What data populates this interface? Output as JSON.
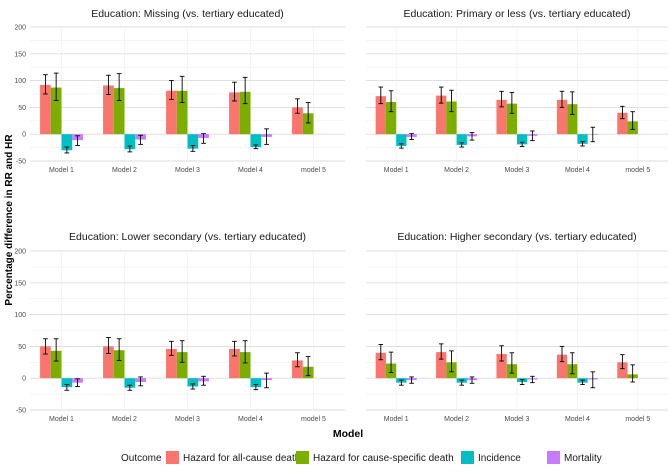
{
  "chart_data": {
    "type": "bar",
    "xlabel": "Model",
    "ylabel": "Percentage difference in RR and HR",
    "ylim": [
      -50,
      200
    ],
    "yticks": [
      -50,
      0,
      50,
      100,
      150,
      200
    ],
    "categories": [
      "Model 1",
      "Model 2",
      "Model 3",
      "Model 4",
      "model 5"
    ],
    "legend": {
      "title": "Outcome",
      "position": "bottom",
      "items": [
        {
          "name": "Hazard for all-cause death",
          "color": "#F8766D"
        },
        {
          "name": "Hazard for cause-specific death",
          "color": "#7CAE00"
        },
        {
          "name": "Incidence",
          "color": "#00BFC4"
        },
        {
          "name": "Mortality",
          "color": "#C77CFF"
        }
      ]
    },
    "panels": [
      {
        "title": "Education: Missing (vs. tertiary educated)",
        "series": [
          {
            "name": "Hazard for all-cause death",
            "values": [
              92,
              91,
              81,
              78,
              50
            ],
            "lower": [
              75,
              74,
              65,
              62,
              39
            ],
            "upper": [
              111,
              110,
              100,
              97,
              66
            ]
          },
          {
            "name": "Hazard for cause-specific death",
            "values": [
              87,
              86,
              81,
              79,
              39
            ],
            "lower": [
              63,
              63,
              59,
              57,
              21
            ],
            "upper": [
              114,
              113,
              108,
              106,
              59
            ]
          },
          {
            "name": "Incidence",
            "values": [
              -30,
              -28,
              -27,
              -24,
              null
            ],
            "lower": [
              -35,
              -33,
              -32,
              -27,
              null
            ],
            "upper": [
              -24,
              -22,
              -21,
              -20,
              null
            ]
          },
          {
            "name": "Mortality",
            "values": [
              -11,
              -10,
              -7,
              -5,
              null
            ],
            "lower": [
              -21,
              -19,
              -17,
              -19,
              null
            ],
            "upper": [
              -3,
              -2,
              1,
              10,
              null
            ]
          }
        ]
      },
      {
        "title": "Education: Primary or less (vs. tertiary educated)",
        "series": [
          {
            "name": "Hazard for all-cause death",
            "values": [
              71,
              72,
              64,
              64,
              40
            ],
            "lower": [
              57,
              58,
              51,
              50,
              29
            ],
            "upper": [
              88,
              88,
              80,
              80,
              52
            ]
          },
          {
            "name": "Hazard for cause-specific death",
            "values": [
              60,
              61,
              57,
              56,
              24
            ],
            "lower": [
              42,
              42,
              39,
              37,
              9
            ],
            "upper": [
              81,
              82,
              78,
              79,
              42
            ]
          },
          {
            "name": "Incidence",
            "values": [
              -22,
              -20,
              -19,
              -18,
              null
            ],
            "lower": [
              -26,
              -24,
              -23,
              -22,
              null
            ],
            "upper": [
              -18,
              -16,
              -15,
              -14,
              null
            ]
          },
          {
            "name": "Mortality",
            "values": [
              -5,
              -4,
              -3,
              -1,
              null
            ],
            "lower": [
              -10,
              -11,
              -12,
              -14,
              null
            ],
            "upper": [
              1,
              3,
              6,
              13,
              null
            ]
          }
        ]
      },
      {
        "title": "Education: Lower secondary (vs. tertiary educated)",
        "series": [
          {
            "name": "Hazard for all-cause death",
            "values": [
              50,
              50,
              46,
              46,
              28
            ],
            "lower": [
              38,
              39,
              36,
              35,
              18
            ],
            "upper": [
              62,
              64,
              58,
              58,
              40
            ]
          },
          {
            "name": "Hazard for cause-specific death",
            "values": [
              43,
              44,
              41,
              41,
              18
            ],
            "lower": [
              27,
              28,
              25,
              24,
              4
            ],
            "upper": [
              62,
              62,
              59,
              59,
              34
            ]
          },
          {
            "name": "Incidence",
            "values": [
              -14,
              -15,
              -13,
              -14,
              null
            ],
            "lower": [
              -19,
              -19,
              -17,
              -18,
              null
            ],
            "upper": [
              -10,
              -11,
              -9,
              -10,
              null
            ]
          },
          {
            "name": "Mortality",
            "values": [
              -7,
              -6,
              -5,
              -3,
              null
            ],
            "lower": [
              -13,
              -12,
              -11,
              -15,
              null
            ],
            "upper": [
              -1,
              2,
              3,
              8,
              null
            ]
          }
        ]
      },
      {
        "title": "Education: Higher secondary (vs. tertiary educated)",
        "series": [
          {
            "name": "Hazard for all-cause death",
            "values": [
              40,
              41,
              38,
              37,
              25
            ],
            "lower": [
              29,
              30,
              27,
              26,
              15
            ],
            "upper": [
              53,
              54,
              51,
              50,
              37
            ]
          },
          {
            "name": "Hazard for cause-specific death",
            "values": [
              23,
              25,
              22,
              22,
              6
            ],
            "lower": [
              9,
              10,
              8,
              7,
              -6
            ],
            "upper": [
              41,
              43,
              40,
              40,
              21
            ]
          },
          {
            "name": "Incidence",
            "values": [
              -7,
              -7,
              -6,
              -7,
              null
            ],
            "lower": [
              -11,
              -11,
              -10,
              -10,
              null
            ],
            "upper": [
              -3,
              -3,
              -2,
              -3,
              null
            ]
          },
          {
            "name": "Mortality",
            "values": [
              -3,
              -3,
              -2,
              -2,
              null
            ],
            "lower": [
              -8,
              -8,
              -7,
              -15,
              null
            ],
            "upper": [
              2,
              2,
              3,
              10,
              null
            ]
          }
        ]
      }
    ]
  }
}
